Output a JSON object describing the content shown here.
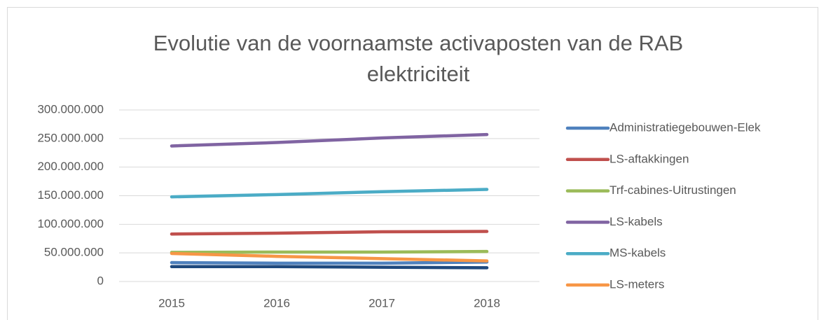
{
  "chart_data": {
    "type": "line",
    "title": "Evolutie van de voornaamste activaposten van de RAB elektriciteit",
    "categories": [
      "2015",
      "2016",
      "2017",
      "2018"
    ],
    "series": [
      {
        "name": "Administratiegebouwen-Elek",
        "color": "#4f81bd",
        "values": [
          33000000,
          32000000,
          32000000,
          34000000
        ]
      },
      {
        "name": "LS-aftakkingen",
        "color": "#c0504d",
        "values": [
          83000000,
          84500000,
          87000000,
          87500000
        ]
      },
      {
        "name": "Trf-cabines-Uitrustingen",
        "color": "#9bbb59",
        "values": [
          51000000,
          51500000,
          51500000,
          52500000
        ]
      },
      {
        "name": "LS-kabels",
        "color": "#8064a2",
        "values": [
          237000000,
          243000000,
          251000000,
          257000000
        ]
      },
      {
        "name": "MS-kabels",
        "color": "#4bacc6",
        "values": [
          148000000,
          152000000,
          157000000,
          161000000
        ]
      },
      {
        "name": "LS-meters",
        "color": "#f79646",
        "values": [
          49000000,
          44000000,
          40000000,
          36000000
        ]
      },
      {
        "color": "#1f497d",
        "values": [
          26000000,
          26000000,
          25000000,
          24000000
        ]
      }
    ],
    "ylim": [
      0,
      300000000
    ],
    "yticks": [
      0,
      {
        "value": 50000000,
        "label": "50.000.000"
      },
      {
        "value": 100000000,
        "label": "100.000.000"
      },
      {
        "value": 150000000,
        "label": "150.000.000"
      },
      {
        "value": 200000000,
        "label": "200.000.000"
      },
      {
        "value": 250000000,
        "label": "250.000.000"
      },
      {
        "value": 300000000,
        "label": "300.000.000"
      }
    ],
    "grid": true,
    "legend": "right"
  }
}
